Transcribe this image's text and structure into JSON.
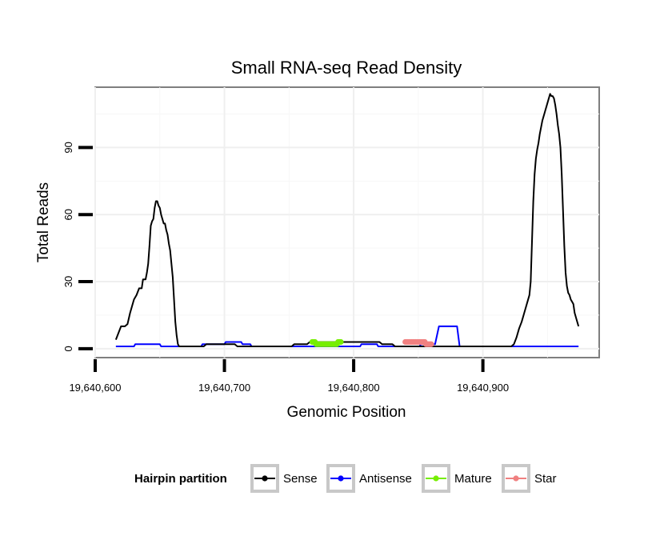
{
  "chart_data": {
    "type": "line",
    "title": "Small RNA-seq Read Density",
    "xlabel": "Genomic Position",
    "ylabel": "Total Reads",
    "xlim": [
      19640600,
      19640990
    ],
    "ylim": [
      -4,
      117
    ],
    "x_ticks": [
      19640600,
      19640700,
      19640800,
      19640900
    ],
    "x_tick_labels": [
      "19,640,600",
      "19,640,700",
      "19,640,800",
      "19,640,900"
    ],
    "y_ticks": [
      0,
      30,
      60,
      90
    ],
    "y_tick_labels": [
      "0",
      "30",
      "60",
      "90"
    ],
    "grid": true,
    "legend": {
      "title": "Hairpin partition",
      "placement": "bottom",
      "entries": [
        "Sense",
        "Antisense",
        "Mature",
        "Star"
      ]
    },
    "series": [
      {
        "name": "Sense",
        "color": "#000000",
        "points": [
          [
            19640616,
            4
          ],
          [
            19640618,
            7
          ],
          [
            19640620,
            10
          ],
          [
            19640623,
            10
          ],
          [
            19640625,
            11
          ],
          [
            19640627,
            16
          ],
          [
            19640628,
            18
          ],
          [
            19640630,
            22
          ],
          [
            19640632,
            24
          ],
          [
            19640634,
            27
          ],
          [
            19640636,
            27
          ],
          [
            19640637,
            31
          ],
          [
            19640639,
            31
          ],
          [
            19640640,
            34
          ],
          [
            19640641,
            38
          ],
          [
            19640642,
            46
          ],
          [
            19640643,
            55
          ],
          [
            19640644,
            57
          ],
          [
            19640645,
            58
          ],
          [
            19640646,
            63
          ],
          [
            19640647,
            66
          ],
          [
            19640648,
            66
          ],
          [
            19640649,
            64
          ],
          [
            19640650,
            63
          ],
          [
            19640651,
            60
          ],
          [
            19640652,
            58
          ],
          [
            19640653,
            56
          ],
          [
            19640654,
            56
          ],
          [
            19640655,
            53
          ],
          [
            19640656,
            51
          ],
          [
            19640657,
            47
          ],
          [
            19640658,
            44
          ],
          [
            19640659,
            38
          ],
          [
            19640660,
            32
          ],
          [
            19640661,
            22
          ],
          [
            19640662,
            12
          ],
          [
            19640663,
            6
          ],
          [
            19640664,
            2
          ],
          [
            19640665,
            1
          ],
          [
            19640684,
            1
          ],
          [
            19640686,
            2
          ],
          [
            19640708,
            2
          ],
          [
            19640710,
            1
          ],
          [
            19640752,
            1
          ],
          [
            19640754,
            2
          ],
          [
            19640764,
            2
          ],
          [
            19640766,
            3
          ],
          [
            19640790,
            3
          ],
          [
            19640792,
            3
          ],
          [
            19640820,
            3
          ],
          [
            19640822,
            2
          ],
          [
            19640830,
            2
          ],
          [
            19640832,
            1
          ],
          [
            19640922,
            1
          ],
          [
            19640924,
            2
          ],
          [
            19640926,
            5
          ],
          [
            19640928,
            9
          ],
          [
            19640930,
            12
          ],
          [
            19640932,
            16
          ],
          [
            19640934,
            20
          ],
          [
            19640936,
            24
          ],
          [
            19640937,
            30
          ],
          [
            19640938,
            48
          ],
          [
            19640939,
            66
          ],
          [
            19640940,
            78
          ],
          [
            19640941,
            85
          ],
          [
            19640942,
            89
          ],
          [
            19640943,
            92
          ],
          [
            19640944,
            96
          ],
          [
            19640945,
            99
          ],
          [
            19640946,
            102
          ],
          [
            19640947,
            104
          ],
          [
            19640948,
            106
          ],
          [
            19640949,
            108
          ],
          [
            19640950,
            110
          ],
          [
            19640951,
            112
          ],
          [
            19640952,
            114
          ],
          [
            19640953,
            113
          ],
          [
            19640954,
            113
          ],
          [
            19640955,
            112
          ],
          [
            19640956,
            109
          ],
          [
            19640957,
            105
          ],
          [
            19640958,
            100
          ],
          [
            19640959,
            96
          ],
          [
            19640960,
            90
          ],
          [
            19640961,
            78
          ],
          [
            19640962,
            62
          ],
          [
            19640963,
            46
          ],
          [
            19640964,
            34
          ],
          [
            19640965,
            28
          ],
          [
            19640966,
            25
          ],
          [
            19640967,
            24
          ],
          [
            19640968,
            22
          ],
          [
            19640969,
            21
          ],
          [
            19640970,
            20
          ],
          [
            19640971,
            16
          ],
          [
            19640972,
            14
          ],
          [
            19640974,
            10
          ]
        ]
      },
      {
        "name": "Antisense",
        "color": "#0000ff",
        "points": [
          [
            19640616,
            1
          ],
          [
            19640630,
            1
          ],
          [
            19640631,
            2
          ],
          [
            19640650,
            2
          ],
          [
            19640651,
            1
          ],
          [
            19640682,
            1
          ],
          [
            19640683,
            2
          ],
          [
            19640700,
            2
          ],
          [
            19640701,
            3
          ],
          [
            19640713,
            3
          ],
          [
            19640714,
            2
          ],
          [
            19640720,
            2
          ],
          [
            19640721,
            1
          ],
          [
            19640805,
            1
          ],
          [
            19640806,
            2
          ],
          [
            19640818,
            2
          ],
          [
            19640819,
            1
          ],
          [
            19640851,
            1
          ],
          [
            19640852,
            2
          ],
          [
            19640863,
            2
          ],
          [
            19640866,
            10
          ],
          [
            19640880,
            10
          ],
          [
            19640882,
            1
          ],
          [
            19640974,
            1
          ]
        ]
      },
      {
        "name": "Mature",
        "color": "#76ee00",
        "points": [
          [
            19640768,
            3
          ],
          [
            19640769,
            3
          ],
          [
            19640770,
            3
          ],
          [
            19640771,
            2
          ],
          [
            19640772,
            2
          ],
          [
            19640773,
            2
          ],
          [
            19640774,
            2
          ],
          [
            19640775,
            2
          ],
          [
            19640776,
            2
          ],
          [
            19640777,
            2
          ],
          [
            19640778,
            2
          ],
          [
            19640779,
            2
          ],
          [
            19640780,
            2
          ],
          [
            19640781,
            2
          ],
          [
            19640782,
            2
          ],
          [
            19640783,
            2
          ],
          [
            19640784,
            2
          ],
          [
            19640785,
            2
          ],
          [
            19640786,
            2
          ],
          [
            19640787,
            2
          ],
          [
            19640788,
            3
          ],
          [
            19640789,
            3
          ],
          [
            19640790,
            3
          ]
        ]
      },
      {
        "name": "Star",
        "color": "#f08080",
        "points": [
          [
            19640840,
            3
          ],
          [
            19640841,
            3
          ],
          [
            19640842,
            3
          ],
          [
            19640843,
            3
          ],
          [
            19640844,
            3
          ],
          [
            19640845,
            3
          ],
          [
            19640846,
            3
          ],
          [
            19640847,
            3
          ],
          [
            19640848,
            3
          ],
          [
            19640849,
            3
          ],
          [
            19640850,
            3
          ],
          [
            19640851,
            3
          ],
          [
            19640852,
            3
          ],
          [
            19640853,
            3
          ],
          [
            19640854,
            3
          ],
          [
            19640855,
            3
          ],
          [
            19640856,
            2
          ],
          [
            19640857,
            2
          ],
          [
            19640858,
            2
          ],
          [
            19640859,
            2
          ],
          [
            19640860,
            2
          ]
        ]
      }
    ]
  }
}
